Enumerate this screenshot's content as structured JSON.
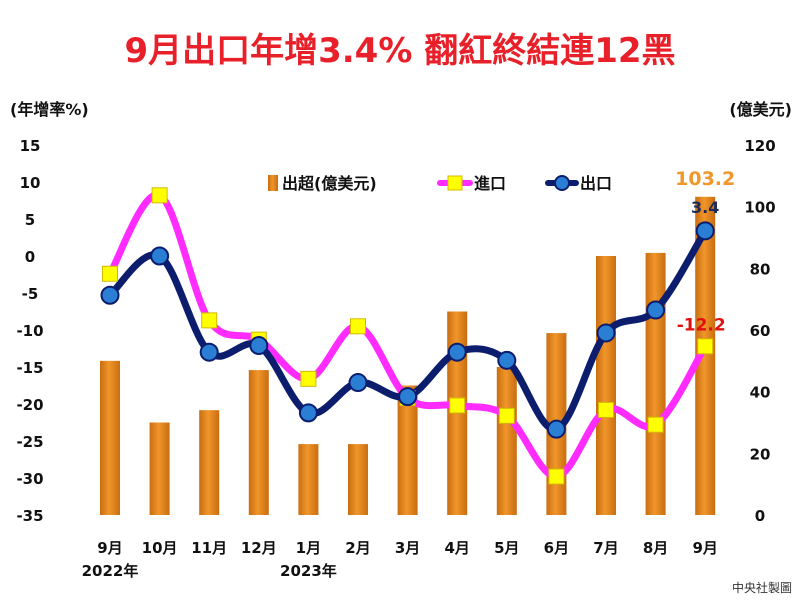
{
  "title": "9月出口年增3.4% 翻紅終結連12黑",
  "credit": "中央社製圖",
  "colors": {
    "title": "#e8202a",
    "bar": "#f0962a",
    "bar_dark": "#c96d10",
    "import_line": "#ff2bff",
    "import_marker": "#ffff00",
    "export_line": "#0d1d6e",
    "export_marker": "#2a7fd4",
    "neg_tick": "#e01010",
    "label_surplus": "#f0962a",
    "label_export": "#1a2a5a",
    "label_import": "#e01010"
  },
  "chart_data": {
    "type": "bar+line",
    "title": "9月出口年增3.4% 翻紅終結連12黑",
    "left_axis": {
      "label": "(年增率%)",
      "range": [
        -35,
        15
      ],
      "ticks": [
        15,
        10,
        5,
        0,
        -5,
        -10,
        -15,
        -20,
        -25,
        -30,
        -35
      ]
    },
    "right_axis": {
      "label": "(億美元)",
      "range": [
        0,
        120
      ],
      "ticks": [
        120,
        100,
        80,
        60,
        40,
        20,
        0
      ]
    },
    "categories": [
      "9月",
      "10月",
      "11月",
      "12月",
      "1月",
      "2月",
      "3月",
      "4月",
      "5月",
      "6月",
      "7月",
      "8月",
      "9月"
    ],
    "year_labels": [
      {
        "text": "2022年",
        "category_index": 0
      },
      {
        "text": "2023年",
        "category_index": 4
      }
    ],
    "legend": {
      "placement": "top-center",
      "items": [
        "出超(億美元)",
        "進口",
        "出口"
      ]
    },
    "series": [
      {
        "name": "出超(億美元)",
        "type": "bar",
        "axis": "right",
        "values": [
          50,
          30,
          34,
          47,
          23,
          23,
          42,
          66,
          48,
          59,
          84,
          85,
          103.2
        ]
      },
      {
        "name": "進口",
        "type": "line",
        "axis": "left",
        "values": [
          -2.4,
          8.2,
          -8.7,
          -11.3,
          -16.6,
          -9.5,
          -19.2,
          -20.2,
          -21.6,
          -29.8,
          -20.8,
          -22.8,
          -12.2
        ]
      },
      {
        "name": "出口",
        "type": "line",
        "axis": "left",
        "values": [
          -5.3,
          0.0,
          -13.0,
          -12.1,
          -21.2,
          -17.1,
          -19.0,
          -13.0,
          -14.1,
          -23.4,
          -10.4,
          -7.3,
          3.4
        ]
      }
    ],
    "data_labels": [
      {
        "series": "出超(億美元)",
        "category_index": 12,
        "text": "103.2"
      },
      {
        "series": "出口",
        "category_index": 12,
        "text": "3.4"
      },
      {
        "series": "進口",
        "category_index": 12,
        "text": "-12.2"
      }
    ]
  }
}
